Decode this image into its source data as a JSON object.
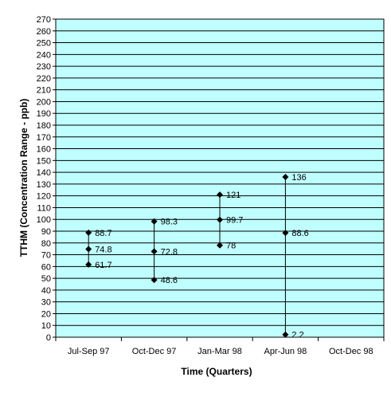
{
  "chart_data": {
    "type": "high-low",
    "title": "",
    "xlabel": "Time (Quarters)",
    "ylabel": "TTHM (Concentration Range - ppb)",
    "ylim": [
      0,
      270
    ],
    "ytick_step": 10,
    "grid": true,
    "legend": "none",
    "categories": [
      "Jul-Sep 97",
      "Oct-Dec 97",
      "Jan-Mar 98",
      "Apr-Jun 98",
      "Oct-Dec 98"
    ],
    "series": [
      {
        "values": [
          88.7,
          98.3,
          121,
          136,
          null
        ]
      },
      {
        "values": [
          74.8,
          72.8,
          99.7,
          88.6,
          null
        ]
      },
      {
        "values": [
          61.7,
          48.6,
          78,
          2.2,
          null
        ]
      }
    ],
    "data_labels": [
      [
        "88.7",
        "98.3",
        "121",
        "136",
        ""
      ],
      [
        "74.8",
        "72.8",
        "99.7",
        "88.6",
        ""
      ],
      [
        "61.7",
        "48.6",
        "78",
        "2.2",
        ""
      ]
    ],
    "colors": {
      "plot_background": "#c0ffff",
      "gridline": "#000000",
      "marker": "#000000",
      "range_line": "#000000"
    }
  }
}
